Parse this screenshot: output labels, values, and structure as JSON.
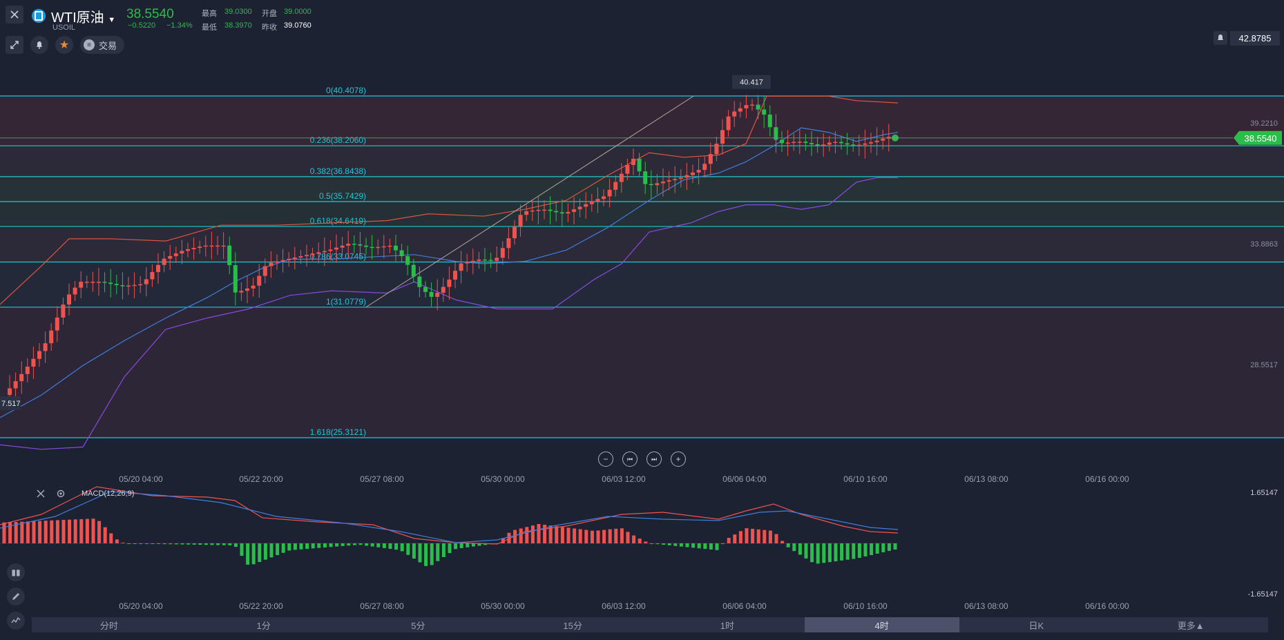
{
  "header": {
    "symbol_name": "WTI原油",
    "symbol_code": "USOIL",
    "price": "38.5540",
    "change": "−0.5220",
    "change_pct": "−1.34%",
    "high_label": "最高",
    "high": "39.0300",
    "open_label": "开盘",
    "open": "39.0000",
    "low_label": "最低",
    "low": "38.3970",
    "prev_label": "昨收",
    "prev": "39.0760",
    "trade_label": "交易",
    "alert_price": "42.8785"
  },
  "chart_data": {
    "type": "candlestick",
    "fib_levels": [
      {
        "ratio": "0",
        "price": 40.4078,
        "label": "0(40.4078)"
      },
      {
        "ratio": "0.236",
        "price": 38.206,
        "label": "0.236(38.2060)"
      },
      {
        "ratio": "0.382",
        "price": 36.8438,
        "label": "0.382(36.8438)"
      },
      {
        "ratio": "0.5",
        "price": 35.7429,
        "label": "0.5(35.7429)"
      },
      {
        "ratio": "0.618",
        "price": 34.6419,
        "label": "0.618(34.6419)"
      },
      {
        "ratio": "0.786",
        "price": 33.0745,
        "label": "0.786(33.0745)"
      },
      {
        "ratio": "1",
        "price": 31.0779,
        "label": "1(31.0779)"
      },
      {
        "ratio": "1.618",
        "price": 25.3121,
        "label": "1.618(25.3121)"
      }
    ],
    "y_axis_labels": [
      "39.2210",
      "33.8863",
      "28.5517"
    ],
    "current_price": "38.5540",
    "high_marker": "40.417",
    "low_marker": "7.517",
    "x_axis_labels": [
      "05/20 04:00",
      "05/22 20:00",
      "05/27 08:00",
      "05/30 00:00",
      "06/03 12:00",
      "06/06 04:00",
      "06/10 16:00",
      "06/13 08:00",
      "06/16 00:00"
    ],
    "macd": {
      "title": "MACD(12,26,9)",
      "y_axis_labels": [
        "1.65147",
        "-1.65147"
      ]
    },
    "colors": {
      "up": "#ef5350",
      "down": "#2bbd4a",
      "fib_line": "#1ec8d8",
      "mid_band": "#3f7fe0",
      "lower_band": "#8a4ae0",
      "upper_band": "#e0553f"
    }
  },
  "controls": {
    "zoom_out": "−",
    "prev": "⏮",
    "next": "⏭",
    "zoom_in": "+"
  },
  "timeframes": [
    {
      "label": "分时",
      "active": false
    },
    {
      "label": "1分",
      "active": false
    },
    {
      "label": "5分",
      "active": false
    },
    {
      "label": "15分",
      "active": false
    },
    {
      "label": "1时",
      "active": false
    },
    {
      "label": "4时",
      "active": true
    },
    {
      "label": "日K",
      "active": false
    },
    {
      "label": "更多▲",
      "active": false
    }
  ]
}
